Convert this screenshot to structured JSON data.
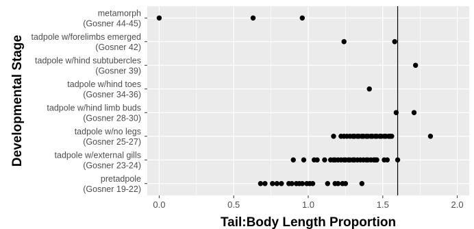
{
  "chart_data": {
    "type": "scatter",
    "title": "",
    "xlabel": "Tail:Body Length Proportion",
    "ylabel": "Developmental Stage",
    "xlim": [
      -0.08,
      2.08
    ],
    "x_ticks": [
      "0.0",
      "0.5",
      "1.0",
      "1.5",
      "2.0"
    ],
    "x_tick_values": [
      0,
      0.5,
      1.0,
      1.5,
      2.0
    ],
    "grid": true,
    "panel_background": "#ebebeb",
    "grid_color": "#ffffff",
    "point_color": "#000000",
    "reference_line_x": 1.6,
    "categories": [
      {
        "line1": "pretadpole",
        "line2": "(Gosner 19-22)",
        "x": [
          0.68,
          0.71,
          0.76,
          0.79,
          0.82,
          0.87,
          0.89,
          0.92,
          0.94,
          0.96,
          0.99,
          1.01,
          1.03,
          1.13,
          1.18,
          1.2,
          1.23,
          1.25,
          1.36
        ]
      },
      {
        "line1": "tadpole w/external gills",
        "line2": "(Gosner 23-24)",
        "x": [
          0.9,
          0.97,
          1.04,
          1.06,
          1.11,
          1.15,
          1.17,
          1.18,
          1.2,
          1.22,
          1.24,
          1.25,
          1.27,
          1.28,
          1.3,
          1.31,
          1.33,
          1.35,
          1.37,
          1.39,
          1.4,
          1.42,
          1.44,
          1.45,
          1.46,
          1.51,
          1.53,
          1.6
        ]
      },
      {
        "line1": "tadpole w/no legs",
        "line2": "(Gosner 25-27)",
        "x": [
          1.17,
          1.22,
          1.24,
          1.26,
          1.28,
          1.3,
          1.31,
          1.33,
          1.34,
          1.36,
          1.37,
          1.39,
          1.4,
          1.42,
          1.43,
          1.45,
          1.46,
          1.48,
          1.49,
          1.51,
          1.52,
          1.54,
          1.55,
          1.56,
          1.82
        ]
      },
      {
        "line1": "tadpole w/hind limb buds",
        "line2": "(Gosner 28-30)",
        "x": [
          1.59,
          1.71
        ]
      },
      {
        "line1": "tadpole w/hind toes",
        "line2": "(Gosner 34-36)",
        "x": [
          1.41
        ]
      },
      {
        "line1": "tadpole w/hind subtubercles",
        "line2": "(Gosner 39)",
        "x": [
          1.72
        ]
      },
      {
        "line1": "tadpole w/forelimbs emerged",
        "line2": "(Gosner 42)",
        "x": [
          1.24,
          1.58
        ]
      },
      {
        "line1": "metamorph",
        "line2": "(Gosner 44-45)",
        "x": [
          0.0,
          0.63,
          0.96
        ]
      }
    ]
  }
}
